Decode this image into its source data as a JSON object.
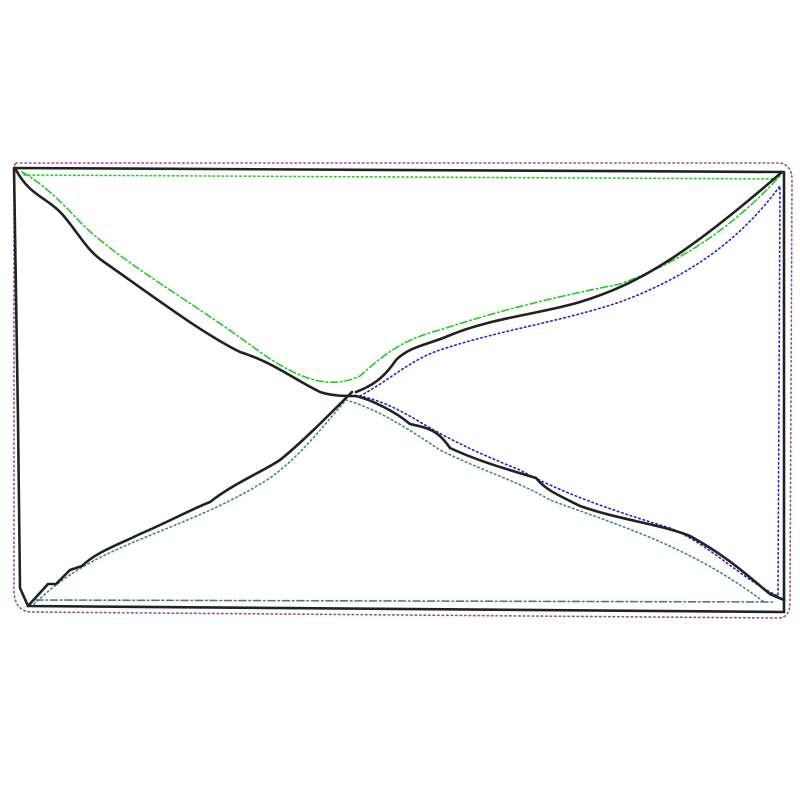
{
  "drawing": {
    "subject": "envelope-sketch",
    "colors": {
      "ink": "#222222",
      "outline_magenta": "#a04a9a",
      "outline_green": "#22cc22",
      "outline_blue": "#2222cc",
      "outline_teal": "#3a8a7a",
      "outline_slate": "#4a7a8a",
      "background": "#ffffff"
    },
    "strokes": [
      {
        "name": "envelope-border-stroke",
        "role": "main",
        "color_key": "ink"
      },
      {
        "name": "flap-left-stroke",
        "role": "main",
        "color_key": "ink"
      },
      {
        "name": "flap-right-stroke",
        "role": "main",
        "color_key": "ink"
      },
      {
        "name": "diagonal-bottom-left-stroke",
        "role": "main",
        "color_key": "ink"
      },
      {
        "name": "diagonal-bottom-right-stroke",
        "role": "main",
        "color_key": "ink"
      },
      {
        "name": "outer-outline-stroke",
        "role": "outline",
        "color_key": "outline_magenta"
      },
      {
        "name": "top-edge-outline-stroke",
        "role": "outline",
        "color_key": "outline_green"
      },
      {
        "name": "flap-outline-stroke",
        "role": "outline",
        "color_key": "outline_green"
      },
      {
        "name": "right-flap-outline-stroke",
        "role": "outline",
        "color_key": "outline_blue"
      },
      {
        "name": "lower-diagonal-outline-stroke",
        "role": "outline",
        "color_key": "outline_teal"
      },
      {
        "name": "bottom-edge-outline-stroke",
        "role": "outline",
        "color_key": "outline_slate"
      }
    ]
  }
}
